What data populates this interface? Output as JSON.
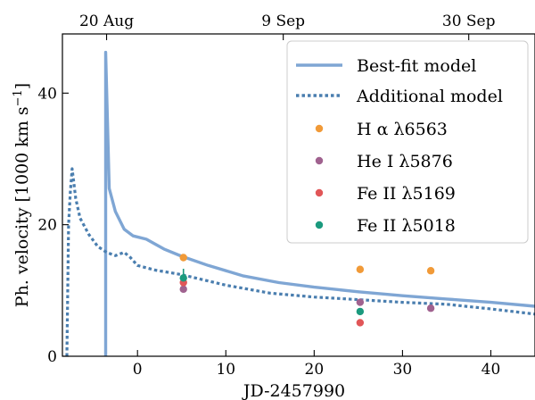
{
  "chart_data": {
    "type": "line",
    "xlabel": "JD-2457990",
    "ylabel": "Ph. velocity [1000 km s",
    "ylabel_sup": "−1",
    "ylabel_end": "]",
    "xlim": [
      -8.5,
      45
    ],
    "ylim": [
      0,
      49
    ],
    "x_ticks": [
      0,
      10,
      20,
      30,
      40
    ],
    "y_ticks": [
      0,
      20,
      40
    ],
    "top_axis_ticks": [
      {
        "x": -3.5,
        "label": "20 Aug"
      },
      {
        "x": 16.5,
        "label": "9 Sep"
      },
      {
        "x": 37.5,
        "label": "30 Sep"
      }
    ],
    "legend_position": "top-right",
    "lines": [
      {
        "name": "Best-fit model",
        "color": "#7fa6d4",
        "style": "solid",
        "points": [
          [
            -3.6,
            0
          ],
          [
            -3.6,
            46.2
          ],
          [
            -3.2,
            25.5
          ],
          [
            -2.5,
            22
          ],
          [
            -1.5,
            19.3
          ],
          [
            -0.5,
            18.3
          ],
          [
            1,
            17.8
          ],
          [
            3,
            16.3
          ],
          [
            5,
            15.2
          ],
          [
            8,
            13.8
          ],
          [
            12,
            12.2
          ],
          [
            16,
            11.2
          ],
          [
            20,
            10.5
          ],
          [
            25,
            9.8
          ],
          [
            30,
            9.2
          ],
          [
            35,
            8.7
          ],
          [
            40,
            8.2
          ],
          [
            45,
            7.6
          ]
        ]
      },
      {
        "name": "Additional model",
        "color": "#4a7eaf",
        "style": "dotted",
        "points": [
          [
            -8,
            0
          ],
          [
            -7.8,
            20
          ],
          [
            -7.6,
            25
          ],
          [
            -7.4,
            28.5
          ],
          [
            -7,
            24
          ],
          [
            -6.5,
            21
          ],
          [
            -5.5,
            18.5
          ],
          [
            -4.5,
            16.7
          ],
          [
            -3.5,
            15.8
          ],
          [
            -2.5,
            15.3
          ],
          [
            -1.5,
            15.8
          ],
          [
            -0.8,
            15
          ],
          [
            0,
            13.8
          ],
          [
            2,
            13.1
          ],
          [
            5,
            12.4
          ],
          [
            10,
            10.8
          ],
          [
            15,
            9.6
          ],
          [
            20,
            9
          ],
          [
            25,
            8.6
          ],
          [
            30,
            8.2
          ],
          [
            35,
            7.9
          ],
          [
            40,
            7.2
          ],
          [
            45,
            6.4
          ]
        ]
      }
    ],
    "scatter_series": [
      {
        "name": "H α λ6563",
        "color": "#f19a38",
        "points": [
          [
            5.2,
            15
          ],
          [
            25.2,
            13.2
          ],
          [
            33.2,
            13
          ]
        ]
      },
      {
        "name": "He I λ5876",
        "color": "#a0628f",
        "points": [
          [
            5.2,
            10.2
          ],
          [
            25.2,
            8.2
          ],
          [
            33.2,
            7.3
          ]
        ]
      },
      {
        "name": "Fe II λ5169",
        "color": "#e15658",
        "points": [
          [
            5.2,
            11.2
          ],
          [
            25.2,
            5.1
          ]
        ]
      },
      {
        "name": "Fe II λ5018",
        "color": "#1b9a7e",
        "points": [
          [
            5.2,
            11.9
          ],
          [
            25.2,
            6.8
          ]
        ]
      }
    ],
    "error_bars": [
      {
        "x": 5.2,
        "y_low": 10.4,
        "y_high": 13.3,
        "color": "#1b9a7e"
      }
    ]
  }
}
